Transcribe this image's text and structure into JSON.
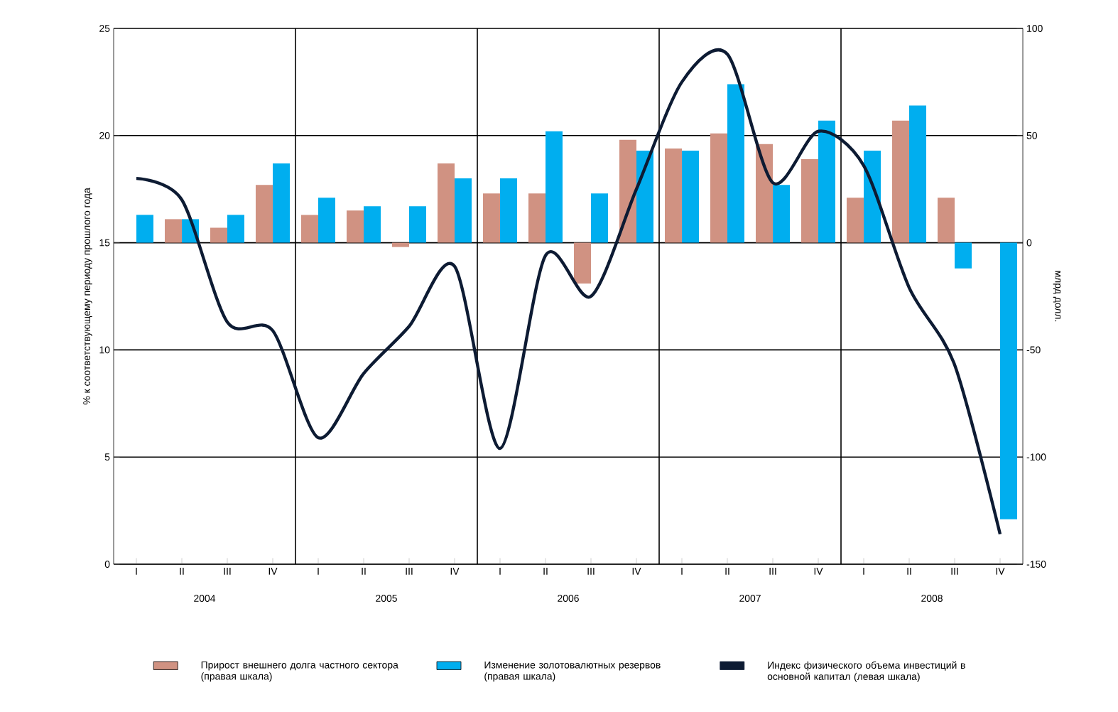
{
  "chart_data": {
    "type": "bar",
    "ylabel": "% к соответствующему периоду прошлого года",
    "y2label": "млрд долл.",
    "categories": [
      "I",
      "II",
      "III",
      "IV",
      "I",
      "II",
      "III",
      "IV",
      "I",
      "II",
      "III",
      "IV",
      "I",
      "II",
      "III",
      "IV",
      "I",
      "II",
      "III",
      "IV"
    ],
    "annotations": [
      "2004",
      "2005",
      "2006",
      "2007",
      "2008"
    ],
    "series": [
      {
        "axis": "y2",
        "name": "Прирост внешнего долга частного сектора (правая шкала)",
        "color": "#d09282",
        "values": [
          null,
          11,
          7,
          27,
          13,
          15,
          -2,
          37,
          23,
          23,
          -19,
          48,
          44,
          51,
          46,
          39,
          21,
          57,
          21,
          null
        ]
      },
      {
        "axis": "y2",
        "name": "Изменение золотовалютных резервов (правая шкала)",
        "color": "#00aeef",
        "values": [
          13,
          11,
          13,
          37,
          21,
          17,
          17,
          30,
          30,
          52,
          23,
          43,
          43,
          74,
          27,
          57,
          43,
          64,
          -12,
          -129
        ]
      },
      {
        "type": "line",
        "axis": "y",
        "name": "Индекс физического объема инвестиций в основной капитал (левая шкала)",
        "color": "#0d1b33",
        "line_style": "solid",
        "marker": "none",
        "values": [
          18.0,
          17.0,
          11.3,
          10.9,
          5.9,
          8.9,
          11.1,
          13.9,
          5.4,
          14.4,
          12.5,
          17.5,
          22.5,
          23.8,
          17.8,
          20.2,
          18.6,
          12.9,
          9.3,
          1.4
        ]
      }
    ],
    "ylim": [
      0,
      25
    ],
    "yticks": [
      0,
      5,
      10,
      15,
      20,
      25
    ],
    "y2lim": [
      -150,
      100
    ],
    "y2ticks": [
      -150,
      -100,
      -50,
      0,
      50,
      100
    ],
    "grid": "y",
    "legend": "bottom"
  }
}
